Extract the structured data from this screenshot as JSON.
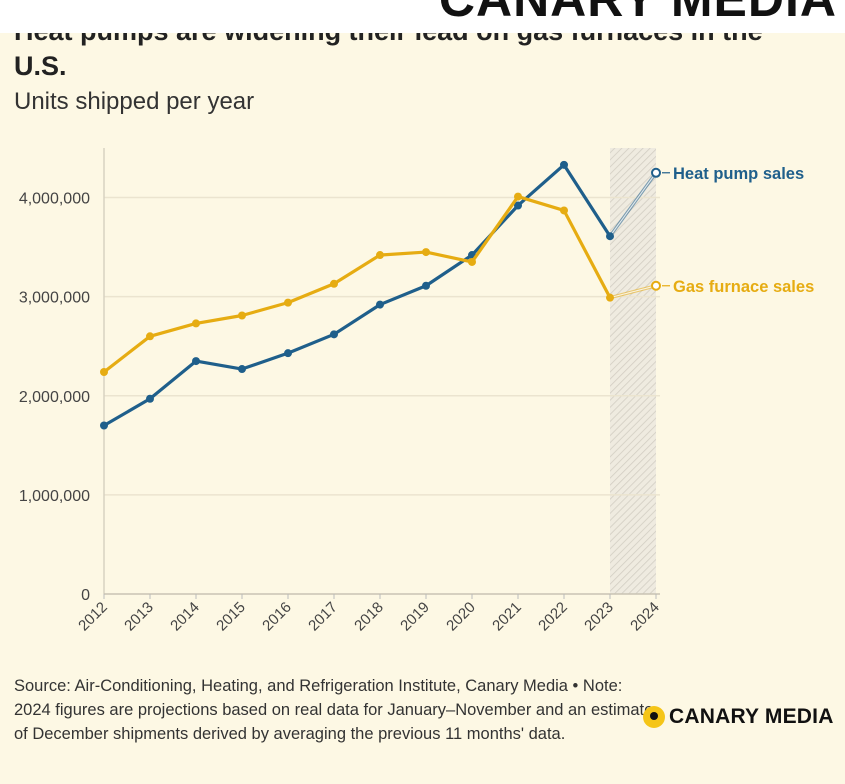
{
  "header": {
    "brand": "CANARY MEDIA"
  },
  "chart_data": {
    "type": "line",
    "title": "Heat pumps are widening their lead on gas furnaces in the U.S.",
    "subtitle": "Units shipped per year",
    "x": [
      2012,
      2013,
      2014,
      2015,
      2016,
      2017,
      2018,
      2019,
      2020,
      2021,
      2022,
      2023,
      2024
    ],
    "ylim": [
      0,
      4500000
    ],
    "yticks": [
      0,
      1000000,
      2000000,
      3000000,
      4000000
    ],
    "ytick_labels": [
      "0",
      "1,000,000",
      "2,000,000",
      "3,000,000",
      "4,000,000"
    ],
    "projection_range": [
      2023,
      2024
    ],
    "grid": "horizontal",
    "series": [
      {
        "name": "Heat pump sales",
        "color": "#1f5f8b",
        "values": [
          1700000,
          1970000,
          2350000,
          2270000,
          2430000,
          2620000,
          2920000,
          3110000,
          3420000,
          3920000,
          4330000,
          3610000,
          4250000
        ]
      },
      {
        "name": "Gas furnace sales",
        "color": "#e6ac12",
        "values": [
          2240000,
          2600000,
          2730000,
          2810000,
          2940000,
          3130000,
          3420000,
          3450000,
          3350000,
          4010000,
          3870000,
          2990000,
          3110000
        ]
      }
    ]
  },
  "footer": {
    "source": "Source: Air-Conditioning, Heating, and Refrigeration Institute, Canary Media • Note: 2024 figures are projections based on real data for January–November and an estimate of December shipments derived by averaging the previous 11 months' data.",
    "logo": "CANARY MEDIA"
  }
}
